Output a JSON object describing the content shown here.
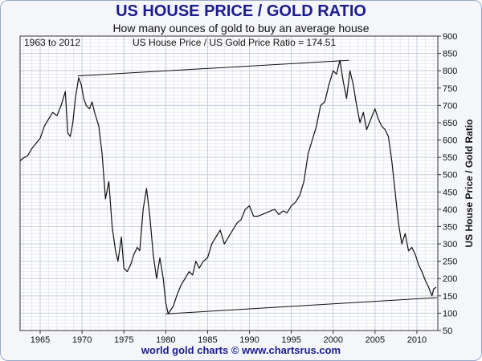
{
  "title": "US HOUSE PRICE / GOLD RATIO",
  "subtitle": "How many ounces of gold to buy an average house",
  "footer": "world gold charts © www.chartsrus.com",
  "chart_data": {
    "type": "line",
    "title": "US HOUSE PRICE / GOLD RATIO",
    "subtitle": "How many ounces of gold to buy an average house",
    "date_range_label": "1963 to 2012",
    "current_value_label": "US House Price / US Gold Price Ratio = 174.51",
    "ylabel": "US House Price / Gold Ratio",
    "xlabel": "",
    "xlim": [
      1962.6,
      2012.5
    ],
    "ylim": [
      50,
      900
    ],
    "x_ticks": [
      1965,
      1970,
      1975,
      1980,
      1985,
      1990,
      1995,
      2000,
      2005,
      2010
    ],
    "y_ticks": [
      50,
      100,
      150,
      200,
      250,
      300,
      350,
      400,
      450,
      500,
      550,
      600,
      650,
      700,
      750,
      800,
      850,
      900
    ],
    "grid": true,
    "line_color": "#111111",
    "series": [
      {
        "name": "US House Price / Gold Ratio",
        "x": [
          1962.6,
          1963.0,
          1963.5,
          1964.0,
          1964.5,
          1965.0,
          1965.5,
          1966.0,
          1966.5,
          1967.0,
          1967.5,
          1968.0,
          1968.3,
          1968.6,
          1968.9,
          1969.2,
          1969.6,
          1969.9,
          1970.2,
          1970.5,
          1970.9,
          1971.2,
          1971.5,
          1972.0,
          1972.4,
          1972.8,
          1973.2,
          1973.6,
          1974.0,
          1974.3,
          1974.7,
          1975.0,
          1975.4,
          1975.8,
          1976.2,
          1976.6,
          1976.9,
          1977.3,
          1977.7,
          1978.1,
          1978.5,
          1978.9,
          1979.3,
          1979.7,
          1980.0,
          1980.3,
          1980.6,
          1980.9,
          1981.3,
          1981.8,
          1982.3,
          1982.8,
          1983.2,
          1983.6,
          1984.0,
          1984.5,
          1985.0,
          1985.5,
          1986.0,
          1986.5,
          1987.0,
          1987.5,
          1988.0,
          1988.5,
          1989.0,
          1989.5,
          1990.0,
          1990.5,
          1991.0,
          1991.5,
          1992.0,
          1992.5,
          1993.0,
          1993.5,
          1994.0,
          1994.5,
          1995.0,
          1995.5,
          1996.0,
          1996.5,
          1997.0,
          1997.5,
          1998.0,
          1998.5,
          1999.0,
          1999.5,
          2000.0,
          2000.4,
          2000.8,
          2001.2,
          2001.6,
          2002.0,
          2002.4,
          2002.8,
          2003.2,
          2003.6,
          2004.0,
          2004.5,
          2005.0,
          2005.4,
          2005.8,
          2006.2,
          2006.6,
          2007.0,
          2007.4,
          2007.8,
          2008.2,
          2008.6,
          2009.0,
          2009.4,
          2009.8,
          2010.2,
          2010.6,
          2011.0,
          2011.4,
          2011.8,
          2012.0,
          2012.3
        ],
        "values": [
          540,
          548,
          555,
          575,
          590,
          605,
          640,
          660,
          680,
          670,
          700,
          740,
          620,
          610,
          650,
          720,
          780,
          760,
          720,
          700,
          690,
          710,
          680,
          640,
          560,
          430,
          480,
          350,
          280,
          250,
          320,
          230,
          220,
          240,
          270,
          290,
          280,
          400,
          460,
          380,
          270,
          200,
          260,
          200,
          130,
          98,
          110,
          120,
          150,
          180,
          200,
          220,
          210,
          250,
          230,
          250,
          260,
          300,
          320,
          340,
          300,
          320,
          340,
          360,
          370,
          400,
          410,
          380,
          380,
          385,
          390,
          395,
          400,
          385,
          395,
          390,
          410,
          420,
          440,
          480,
          560,
          600,
          640,
          700,
          710,
          760,
          800,
          790,
          830,
          770,
          720,
          800,
          760,
          700,
          650,
          680,
          630,
          660,
          690,
          660,
          640,
          630,
          610,
          540,
          450,
          360,
          300,
          330,
          280,
          290,
          270,
          240,
          220,
          195,
          175,
          150,
          170,
          175
        ]
      }
    ],
    "trendlines": [
      {
        "x": [
          1969.5,
          2001.9
        ],
        "y": [
          785,
          830
        ]
      },
      {
        "x": [
          1980.0,
          2012.4
        ],
        "y": [
          98,
          145
        ]
      }
    ]
  }
}
